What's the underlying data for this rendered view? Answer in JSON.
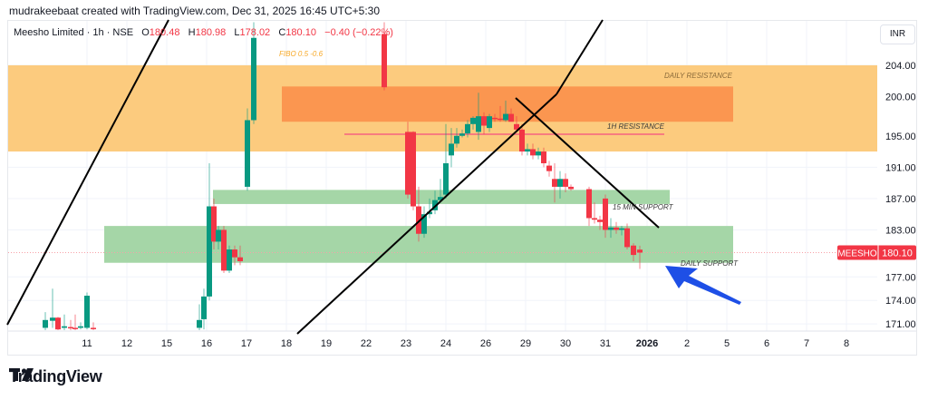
{
  "header": {
    "credit": "mudrakeebaat created with TradingView.com, Dec 31, 2025 16:45 UTC+5:30"
  },
  "legend": {
    "symbol": "Meesho Limited · 1h · NSE",
    "open_label": "O",
    "open": "180.48",
    "high_label": "H",
    "high": "180.98",
    "low_label": "L",
    "low": "178.02",
    "close_label": "C",
    "close": "180.10",
    "change": "−0.40 (−0.22%)"
  },
  "currency": "INR",
  "price_tag": {
    "symbol": "MEESHO",
    "price": "180.10"
  },
  "footer": {
    "brand": "TradingView"
  },
  "colors": {
    "up": "#089981",
    "down": "#f23645",
    "daily_resistance": "#fccb7e",
    "h1_resistance": "#fb9650",
    "support": "#a5d6a7",
    "arrow": "#1e4fe6",
    "fibo": "#f7a928"
  },
  "chart_data": {
    "type": "candlestick",
    "title": "Meesho Limited · 1h · NSE",
    "xlabel": "",
    "ylabel": "INR",
    "x_ticks": [
      "11",
      "12",
      "15",
      "16",
      "17",
      "18",
      "19",
      "22",
      "23",
      "24",
      "26",
      "29",
      "30",
      "31",
      "2026",
      "2",
      "5",
      "6",
      "7",
      "8"
    ],
    "y_ticks": [
      "204.00",
      "200.00",
      "195.00",
      "191.00",
      "187.00",
      "183.00",
      "177.00",
      "174.00",
      "171.00"
    ],
    "ylim": [
      168.5,
      207.5
    ],
    "last_price": 180.1,
    "ohlc_last": {
      "open": 180.48,
      "high": 180.98,
      "low": 178.02,
      "close": 180.1
    },
    "zones": [
      {
        "label": "DAILY RESISTANCE",
        "from": 193.0,
        "to": 204.0
      },
      {
        "label": "1H RESISTANCE",
        "from": 196.8,
        "to": 201.3
      },
      {
        "label": "15 MIN SUPPORT",
        "from": 186.3,
        "to": 188.1
      },
      {
        "label": "DAILY SUPPORT",
        "from": 178.8,
        "to": 183.5
      }
    ],
    "annotations": [
      "FIBO 0.5 -0.6",
      "DAILY RESISTANCE",
      "1H RESISTANCE",
      "15 MIN SUPPORT",
      "DAILY SUPPORT"
    ],
    "candles": [
      {
        "x": 50,
        "o": 170.5,
        "h": 172.5,
        "l": 170.0,
        "c": 171.5
      },
      {
        "x": 58,
        "o": 171.4,
        "h": 175.5,
        "l": 170.5,
        "c": 171.8
      },
      {
        "x": 64,
        "o": 171.8,
        "h": 171.9,
        "l": 170.2,
        "c": 170.3
      },
      {
        "x": 71,
        "o": 170.5,
        "h": 172.2,
        "l": 170.2,
        "c": 170.7
      },
      {
        "x": 78,
        "o": 170.6,
        "h": 171.5,
        "l": 170.2,
        "c": 170.5
      },
      {
        "x": 83,
        "o": 170.5,
        "h": 172.2,
        "l": 170.2,
        "c": 170.4
      },
      {
        "x": 89,
        "o": 170.5,
        "h": 171.2,
        "l": 170.3,
        "c": 170.7
      },
      {
        "x": 96,
        "o": 170.5,
        "h": 175.0,
        "l": 170.3,
        "c": 174.6
      },
      {
        "x": 103,
        "o": 170.5,
        "h": 171.2,
        "l": 170.2,
        "c": 170.4
      },
      {
        "x": 220,
        "o": 170.5,
        "h": 173.5,
        "l": 170.2,
        "c": 171.5
      },
      {
        "x": 225,
        "o": 171.6,
        "h": 175.5,
        "l": 170.3,
        "c": 174.5
      },
      {
        "x": 231,
        "o": 174.5,
        "h": 191.5,
        "l": 174.0,
        "c": 186.0
      },
      {
        "x": 236,
        "o": 186.0,
        "h": 187.0,
        "l": 180.5,
        "c": 181.5
      },
      {
        "x": 241,
        "o": 181.5,
        "h": 183.5,
        "l": 180.5,
        "c": 183.0
      },
      {
        "x": 247,
        "o": 183.0,
        "h": 183.5,
        "l": 177.5,
        "c": 177.8
      },
      {
        "x": 253,
        "o": 177.8,
        "h": 181.0,
        "l": 177.5,
        "c": 180.5
      },
      {
        "x": 259,
        "o": 180.5,
        "h": 181.0,
        "l": 178.5,
        "c": 179.5
      },
      {
        "x": 265,
        "o": 179.5,
        "h": 181.0,
        "l": 178.5,
        "c": 179.0
      },
      {
        "x": 273,
        "o": 188.5,
        "h": 198.5,
        "l": 188.0,
        "c": 197.0
      },
      {
        "x": 280,
        "o": 197.0,
        "h": 209.5,
        "l": 196.5,
        "c": 207.5
      },
      {
        "x": 424,
        "o": 208.0,
        "h": 209.5,
        "l": 200.8,
        "c": 201.2
      },
      {
        "x": 450,
        "o": 195.5,
        "h": 196.8,
        "l": 187.0,
        "c": 187.5
      },
      {
        "x": 456,
        "o": 195.5,
        "h": 195.6,
        "l": 185.5,
        "c": 186.0
      },
      {
        "x": 462,
        "o": 186.0,
        "h": 188.5,
        "l": 181.5,
        "c": 182.5
      },
      {
        "x": 468,
        "o": 182.5,
        "h": 186.0,
        "l": 182.0,
        "c": 185.0
      },
      {
        "x": 474,
        "o": 185.0,
        "h": 187.0,
        "l": 184.5,
        "c": 185.3
      },
      {
        "x": 480,
        "o": 185.5,
        "h": 188.0,
        "l": 185.0,
        "c": 186.8
      },
      {
        "x": 486,
        "o": 186.8,
        "h": 189.5,
        "l": 186.5,
        "c": 187.2
      },
      {
        "x": 492,
        "o": 187.5,
        "h": 196.5,
        "l": 187.0,
        "c": 191.5
      },
      {
        "x": 498,
        "o": 192.5,
        "h": 196.0,
        "l": 191.0,
        "c": 194.0
      },
      {
        "x": 504,
        "o": 194.0,
        "h": 196.0,
        "l": 193.5,
        "c": 195.0
      },
      {
        "x": 510,
        "o": 195.0,
        "h": 195.8,
        "l": 194.8,
        "c": 195.3
      },
      {
        "x": 516,
        "o": 195.3,
        "h": 197.0,
        "l": 194.8,
        "c": 196.5
      },
      {
        "x": 522,
        "o": 196.5,
        "h": 197.5,
        "l": 195.8,
        "c": 197.3
      },
      {
        "x": 528,
        "o": 195.5,
        "h": 200.5,
        "l": 194.5,
        "c": 197.5
      },
      {
        "x": 534,
        "o": 197.5,
        "h": 198.0,
        "l": 195.2,
        "c": 196.3
      },
      {
        "x": 540,
        "o": 196.0,
        "h": 197.8,
        "l": 195.5,
        "c": 197.5
      },
      {
        "x": 546,
        "o": 197.3,
        "h": 197.8,
        "l": 196.8,
        "c": 197.2
      },
      {
        "x": 552,
        "o": 197.2,
        "h": 198.8,
        "l": 196.8,
        "c": 197.1
      },
      {
        "x": 558,
        "o": 197.0,
        "h": 199.5,
        "l": 196.8,
        "c": 197.8
      },
      {
        "x": 564,
        "o": 197.8,
        "h": 198.5,
        "l": 197.0,
        "c": 196.8
      },
      {
        "x": 570,
        "o": 196.5,
        "h": 197.5,
        "l": 195.5,
        "c": 195.8
      },
      {
        "x": 576,
        "o": 195.8,
        "h": 196.5,
        "l": 192.5,
        "c": 193.0
      },
      {
        "x": 582,
        "o": 193.0,
        "h": 194.0,
        "l": 192.5,
        "c": 193.3
      },
      {
        "x": 588,
        "o": 193.3,
        "h": 194.0,
        "l": 192.0,
        "c": 192.5
      },
      {
        "x": 594,
        "o": 192.5,
        "h": 193.5,
        "l": 192.0,
        "c": 193.0
      },
      {
        "x": 600,
        "o": 193.0,
        "h": 193.5,
        "l": 191.0,
        "c": 191.5
      },
      {
        "x": 606,
        "o": 191.2,
        "h": 191.8,
        "l": 189.8,
        "c": 190.5
      },
      {
        "x": 612,
        "o": 189.5,
        "h": 191.5,
        "l": 186.5,
        "c": 188.5
      },
      {
        "x": 618,
        "o": 188.5,
        "h": 190.5,
        "l": 187.0,
        "c": 189.5
      },
      {
        "x": 624,
        "o": 189.5,
        "h": 190.2,
        "l": 187.8,
        "c": 188.5
      },
      {
        "x": 630,
        "o": 188.5,
        "h": 188.8,
        "l": 188.0,
        "c": 188.2
      },
      {
        "x": 650,
        "o": 188.2,
        "h": 188.5,
        "l": 183.5,
        "c": 184.5
      },
      {
        "x": 656,
        "o": 184.5,
        "h": 186.5,
        "l": 183.8,
        "c": 184.3
      },
      {
        "x": 662,
        "o": 184.3,
        "h": 184.8,
        "l": 183.0,
        "c": 184.0
      },
      {
        "x": 668,
        "o": 187.0,
        "h": 187.5,
        "l": 182.0,
        "c": 183.0
      },
      {
        "x": 674,
        "o": 183.0,
        "h": 184.5,
        "l": 182.0,
        "c": 183.3
      },
      {
        "x": 680,
        "o": 183.3,
        "h": 184.0,
        "l": 182.5,
        "c": 183.0
      },
      {
        "x": 686,
        "o": 183.0,
        "h": 183.5,
        "l": 182.3,
        "c": 183.2
      },
      {
        "x": 692,
        "o": 183.2,
        "h": 183.8,
        "l": 180.5,
        "c": 180.8
      },
      {
        "x": 699,
        "o": 181.0,
        "h": 181.3,
        "l": 179.0,
        "c": 179.8
      },
      {
        "x": 706,
        "o": 180.48,
        "h": 180.98,
        "l": 178.02,
        "c": 180.1
      }
    ]
  }
}
